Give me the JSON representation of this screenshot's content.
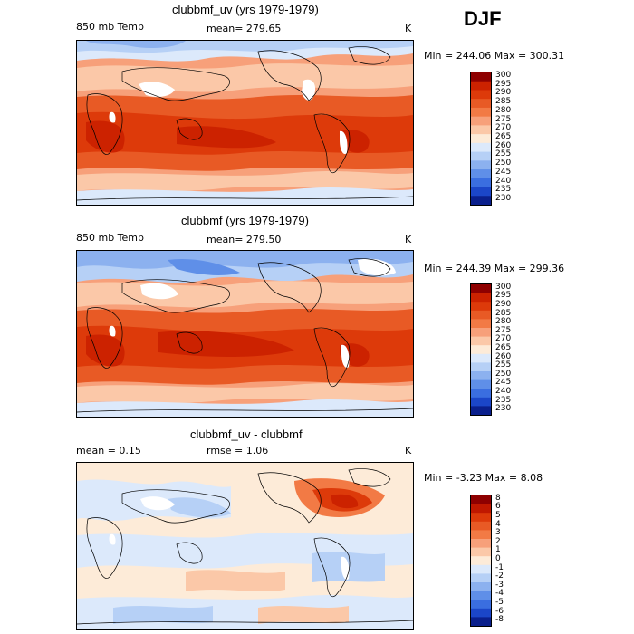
{
  "season": "DJF",
  "panels": [
    {
      "title": "clubbmf_uv (yrs 1979-1979)",
      "left": "850 mb Temp",
      "stat": "mean= 279.65",
      "unit": "K",
      "range": "Min = 244.06 Max = 300.31",
      "levels": [
        "300",
        "295",
        "290",
        "285",
        "280",
        "275",
        "270",
        "265",
        "260",
        "255",
        "250",
        "245",
        "240",
        "235",
        "230"
      ],
      "colors": [
        "#8e0000",
        "#cc2200",
        "#dd3a0a",
        "#e85a25",
        "#f27a45",
        "#f7a07a",
        "#fbc8a8",
        "#fdebd8",
        "#dce9fb",
        "#b6d0f6",
        "#8cb1ef",
        "#5f8fe8",
        "#3a6ee0",
        "#1b46c8",
        "#0a1f8c"
      ]
    },
    {
      "title": "clubbmf (yrs 1979-1979)",
      "left": "850 mb Temp",
      "stat": "mean= 279.50",
      "unit": "K",
      "range": "Min = 244.39 Max = 299.36",
      "levels": [
        "300",
        "295",
        "290",
        "285",
        "280",
        "275",
        "270",
        "265",
        "260",
        "255",
        "250",
        "245",
        "240",
        "235",
        "230"
      ],
      "colors": [
        "#8e0000",
        "#cc2200",
        "#dd3a0a",
        "#e85a25",
        "#f27a45",
        "#f7a07a",
        "#fbc8a8",
        "#fdebd8",
        "#dce9fb",
        "#b6d0f6",
        "#8cb1ef",
        "#5f8fe8",
        "#3a6ee0",
        "#1b46c8",
        "#0a1f8c"
      ]
    },
    {
      "title": "clubbmf_uv - clubbmf",
      "left": "mean =   0.15",
      "stat": "rmse =   1.06",
      "unit": "K",
      "range": "Min = -3.23 Max =  8.08",
      "levels": [
        "8",
        "6",
        "5",
        "4",
        "3",
        "2",
        "1",
        "0",
        "-1",
        "-2",
        "-3",
        "-4",
        "-5",
        "-6",
        "-8"
      ],
      "colors": [
        "#8e0000",
        "#c01800",
        "#dd3a0a",
        "#e85a25",
        "#f27a45",
        "#f7a07a",
        "#fbc8a8",
        "#fdebd8",
        "#dce9fb",
        "#b6d0f6",
        "#8cb1ef",
        "#5f8fe8",
        "#3a6ee0",
        "#1b46c8",
        "#0a1f8c"
      ]
    }
  ]
}
